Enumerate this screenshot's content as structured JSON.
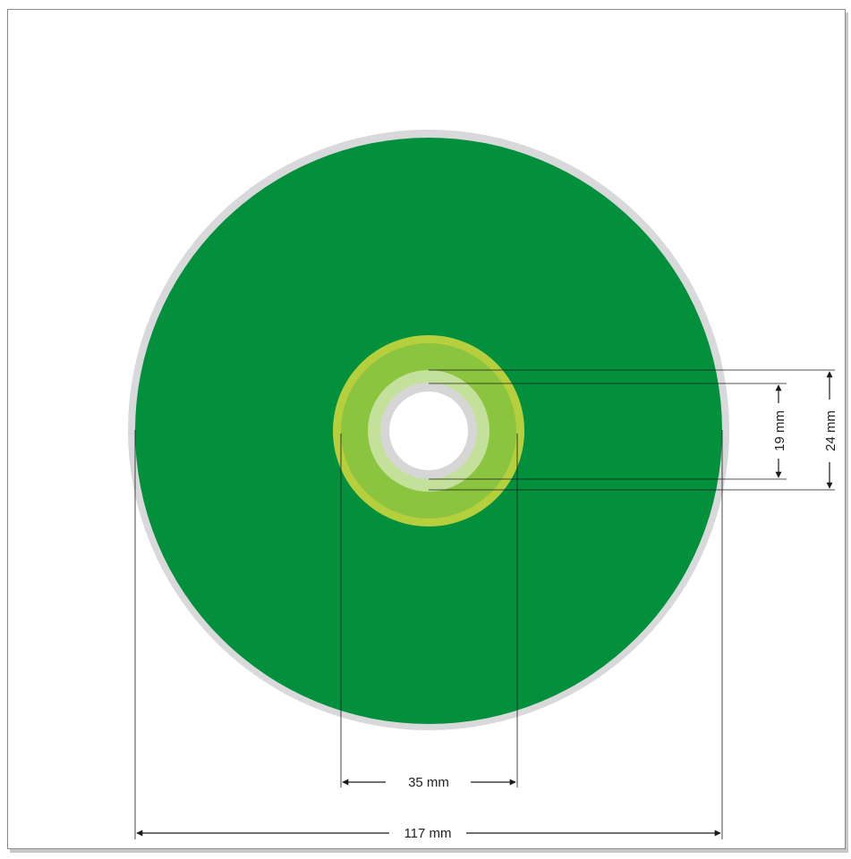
{
  "diagram": {
    "colors": {
      "disc_rim": "#d9d9dc",
      "data_area": "#02903d",
      "clamp_outer": "#b6cf3c",
      "clamp_ring": "#8bc53f",
      "inner_ring": "#c3e19a",
      "hole_rim": "#d6d6d6",
      "hole": "#ffffff",
      "dimension_line": "#1a1a1a"
    },
    "dimensions": {
      "outer_diameter": "117 mm",
      "clamp_diameter": "35 mm",
      "inner_ring_diameter": "19 mm",
      "hub_diameter": "24 mm"
    }
  }
}
